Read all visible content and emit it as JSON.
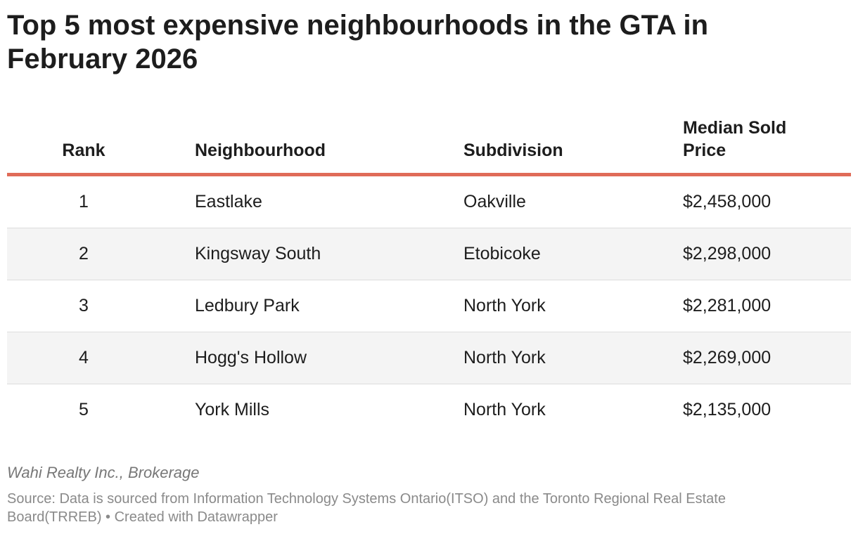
{
  "chart_data": {
    "type": "table",
    "title": "Top 5 most expensive neighbourhoods in the GTA in February 2026",
    "columns": [
      "Rank",
      "Neighbourhood",
      "Subdivision",
      "Median Sold Price"
    ],
    "rows": [
      {
        "rank": "1",
        "neighbourhood": "Eastlake",
        "subdivision": "Oakville",
        "price": "$2,458,000"
      },
      {
        "rank": "2",
        "neighbourhood": "Kingsway South",
        "subdivision": "Etobicoke",
        "price": "$2,298,000"
      },
      {
        "rank": "3",
        "neighbourhood": "Ledbury Park",
        "subdivision": "North York",
        "price": "$2,281,000"
      },
      {
        "rank": "4",
        "neighbourhood": "Hogg's Hollow",
        "subdivision": "North York",
        "price": "$2,269,000"
      },
      {
        "rank": "5",
        "neighbourhood": "York Mills",
        "subdivision": "North York",
        "price": "$2,135,000"
      }
    ],
    "values": [
      2458000,
      2298000,
      2281000,
      2269000,
      2135000
    ]
  },
  "footer": {
    "brand": "Wahi Realty Inc., Brokerage",
    "source_label": "Source: ",
    "source": "Data is sourced from Information Technology Systems Ontario(ITSO) and the Toronto Regional Real Estate Board(TRREB)",
    "separator": " • ",
    "created_with": "Created with Datawrapper"
  },
  "colors": {
    "header_rule": "#e06b58",
    "stripe": "#f4f4f4"
  }
}
